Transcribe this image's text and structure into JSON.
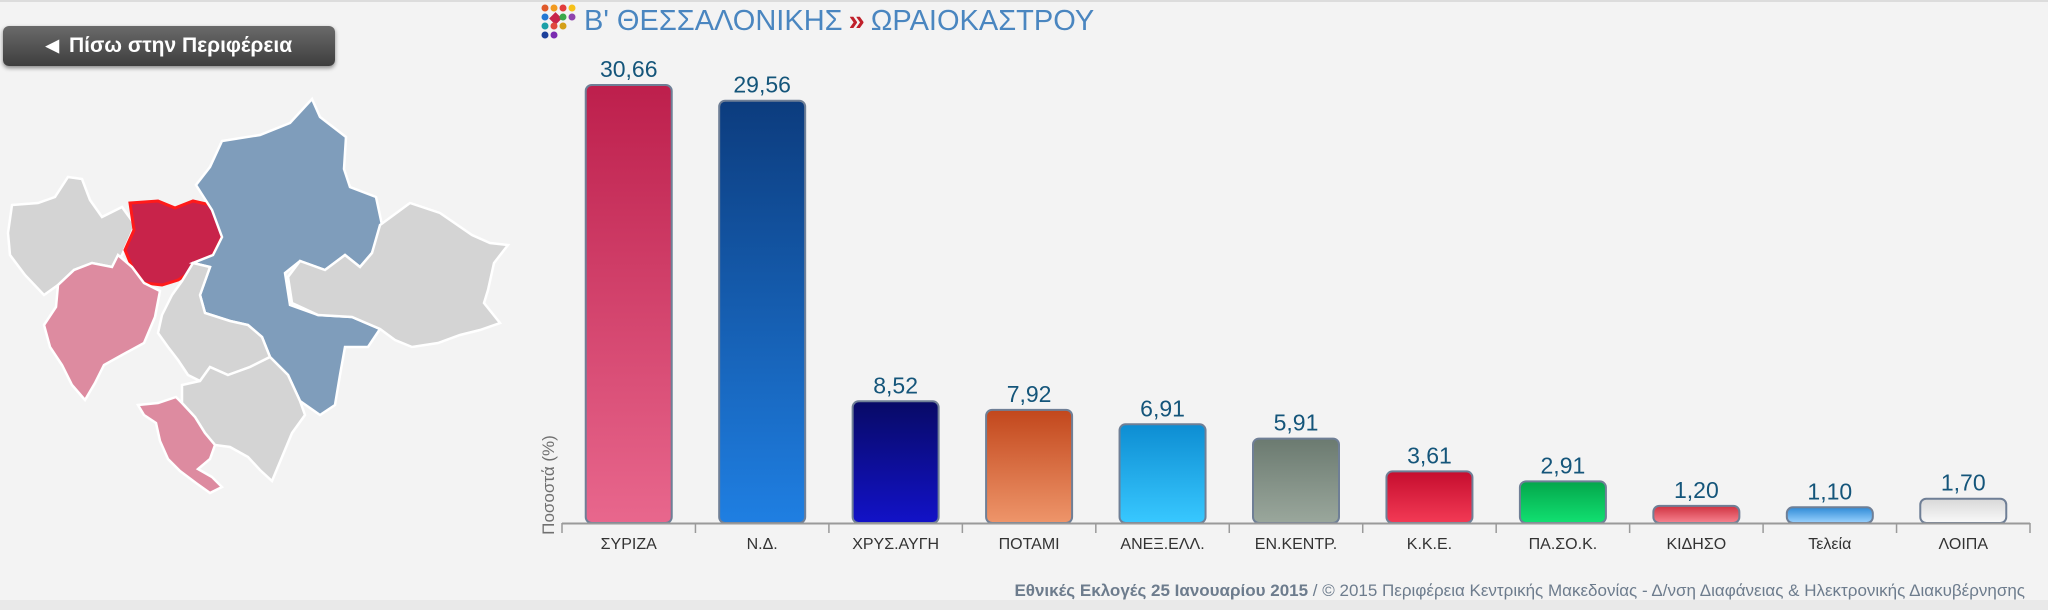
{
  "nav": {
    "back_label": "Πίσω στην Περιφέρεια"
  },
  "header": {
    "region": "Β' ΘΕΣΣΑΛΟΝΙΚΗΣ",
    "separator": "»",
    "municipality": "ΩΡΑΙΟΚΑΣΤΡΟΥ"
  },
  "colors": {
    "title": "#4a86c0",
    "separator": "#c0202a",
    "map_selected": "#c8234a",
    "map_party_area": "#7f9dbb",
    "map_pink_area": "#dd8ba0",
    "map_other": "#d4d4d4"
  },
  "chart_data": {
    "type": "bar",
    "title": "",
    "xlabel": "",
    "ylabel": "Ποσοστά (%)",
    "ylim": [
      0,
      32
    ],
    "categories": [
      "ΣΥΡΙΖΑ",
      "Ν.Δ.",
      "ΧΡΥΣ.ΑΥΓΗ",
      "ΠΟΤΑΜΙ",
      "ΑΝΕΞ.ΕΛΛ.",
      "ΕΝ.ΚΕΝΤΡ.",
      "Κ.Κ.Ε.",
      "ΠΑ.ΣΟ.Κ.",
      "ΚΙΔΗΣΟ",
      "Τελεία",
      "ΛΟΙΠΑ"
    ],
    "values": [
      30.66,
      29.56,
      8.52,
      7.92,
      6.91,
      5.91,
      3.61,
      2.91,
      1.2,
      1.1,
      1.7
    ],
    "value_labels": [
      "30,66",
      "29,56",
      "8,52",
      "7,92",
      "6,91",
      "5,91",
      "3,61",
      "2,91",
      "1,20",
      "1,10",
      "1,70"
    ],
    "bar_colors": [
      [
        "#bd1f4c",
        "#e8678d"
      ],
      [
        "#0c3c7e",
        "#1f7fe2"
      ],
      [
        "#080a66",
        "#1212c8"
      ],
      [
        "#c2471c",
        "#ee956a"
      ],
      [
        "#0d8dd2",
        "#38c8ff"
      ],
      [
        "#6b7a70",
        "#9aa79c"
      ],
      [
        "#c50d2e",
        "#f33a55"
      ],
      [
        "#04a64b",
        "#11e071"
      ],
      [
        "#cf3240",
        "#f78390"
      ],
      [
        "#2f8ad6",
        "#9ad2ff"
      ],
      [
        "#d8d8d8",
        "#f9f9f9"
      ]
    ],
    "value_label_color": "#14557a",
    "grid": false,
    "legend": "none"
  },
  "footer": {
    "election": "Εθνικές Εκλογές 25 Ιανουαρίου 2015",
    "credit": "/ © 2015 Περιφέρεια Κεντρικής Μακεδονίας - Δ/νση Διαφάνειας & Ηλεκτρονικής Διακυβέρνησης"
  }
}
